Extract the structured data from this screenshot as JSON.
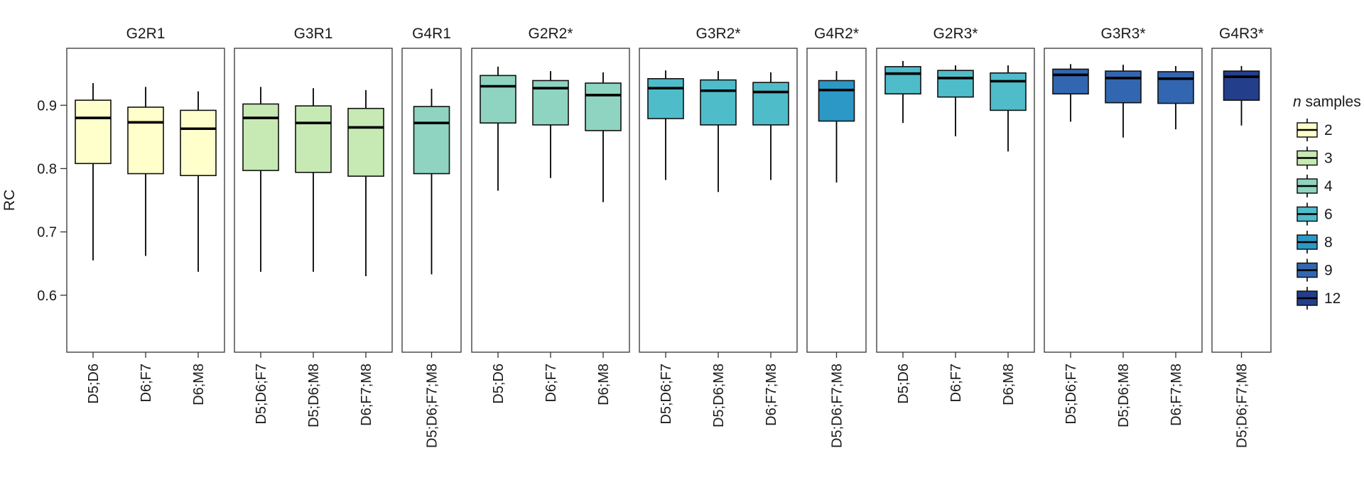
{
  "chart_data": {
    "type": "boxplot",
    "ylabel": "RC",
    "ylim": [
      0.51,
      0.99
    ],
    "yticks": [
      0.6,
      0.7,
      0.8,
      0.9
    ],
    "ytick_labels": [
      "0.6",
      "0.7",
      "0.8",
      "0.9"
    ],
    "legend": {
      "title_italic": "n",
      "title_rest": " samples",
      "position": "right",
      "entries": [
        {
          "label": "2",
          "color": "#ffffcc"
        },
        {
          "label": "3",
          "color": "#c7e9b4"
        },
        {
          "label": "4",
          "color": "#8fd4c0"
        },
        {
          "label": "6",
          "color": "#4fbcca"
        },
        {
          "label": "8",
          "color": "#2b98c6"
        },
        {
          "label": "9",
          "color": "#3366b0"
        },
        {
          "label": "12",
          "color": "#233e8b"
        }
      ]
    },
    "panels": [
      {
        "title": "G2R1",
        "boxes": [
          {
            "label": "D5;D6",
            "color": "#ffffcc",
            "min": 0.655,
            "q1": 0.808,
            "median": 0.88,
            "q3": 0.908,
            "max": 0.935
          },
          {
            "label": "D6;F7",
            "color": "#ffffcc",
            "min": 0.662,
            "q1": 0.792,
            "median": 0.873,
            "q3": 0.897,
            "max": 0.929
          },
          {
            "label": "D6;M8",
            "color": "#ffffcc",
            "min": 0.637,
            "q1": 0.789,
            "median": 0.863,
            "q3": 0.892,
            "max": 0.922
          }
        ]
      },
      {
        "title": "G3R1",
        "boxes": [
          {
            "label": "D5;D6;F7",
            "color": "#c7e9b4",
            "min": 0.637,
            "q1": 0.797,
            "median": 0.88,
            "q3": 0.902,
            "max": 0.929
          },
          {
            "label": "D5;D6;M8",
            "color": "#c7e9b4",
            "min": 0.637,
            "q1": 0.794,
            "median": 0.872,
            "q3": 0.899,
            "max": 0.927
          },
          {
            "label": "D6;F7;M8",
            "color": "#c7e9b4",
            "min": 0.63,
            "q1": 0.788,
            "median": 0.865,
            "q3": 0.895,
            "max": 0.924
          }
        ]
      },
      {
        "title": "G4R1",
        "boxes": [
          {
            "label": "D5;D6;F7;M8",
            "color": "#8fd4c0",
            "min": 0.633,
            "q1": 0.792,
            "median": 0.872,
            "q3": 0.898,
            "max": 0.926
          }
        ]
      },
      {
        "title": "G2R2*",
        "boxes": [
          {
            "label": "D5;D6",
            "color": "#8fd4c0",
            "min": 0.765,
            "q1": 0.872,
            "median": 0.93,
            "q3": 0.947,
            "max": 0.961
          },
          {
            "label": "D6;F7",
            "color": "#8fd4c0",
            "min": 0.785,
            "q1": 0.869,
            "median": 0.927,
            "q3": 0.939,
            "max": 0.954
          },
          {
            "label": "D6;M8",
            "color": "#8fd4c0",
            "min": 0.747,
            "q1": 0.86,
            "median": 0.916,
            "q3": 0.935,
            "max": 0.952
          }
        ]
      },
      {
        "title": "G3R2*",
        "boxes": [
          {
            "label": "D5;D6;F7",
            "color": "#4fbcca",
            "min": 0.782,
            "q1": 0.879,
            "median": 0.927,
            "q3": 0.942,
            "max": 0.955
          },
          {
            "label": "D5;D6;M8",
            "color": "#4fbcca",
            "min": 0.763,
            "q1": 0.869,
            "median": 0.923,
            "q3": 0.94,
            "max": 0.954
          },
          {
            "label": "D6;F7;M8",
            "color": "#4fbcca",
            "min": 0.782,
            "q1": 0.869,
            "median": 0.921,
            "q3": 0.936,
            "max": 0.952
          }
        ]
      },
      {
        "title": "G4R2*",
        "boxes": [
          {
            "label": "D5;D6;F7;M8",
            "color": "#2b98c6",
            "min": 0.778,
            "q1": 0.875,
            "median": 0.924,
            "q3": 0.939,
            "max": 0.954
          }
        ]
      },
      {
        "title": "G2R3*",
        "boxes": [
          {
            "label": "D5;D6",
            "color": "#4fbcca",
            "min": 0.872,
            "q1": 0.918,
            "median": 0.95,
            "q3": 0.961,
            "max": 0.97
          },
          {
            "label": "D6;F7",
            "color": "#4fbcca",
            "min": 0.851,
            "q1": 0.913,
            "median": 0.943,
            "q3": 0.955,
            "max": 0.963
          },
          {
            "label": "D6;M8",
            "color": "#4fbcca",
            "min": 0.827,
            "q1": 0.892,
            "median": 0.938,
            "q3": 0.951,
            "max": 0.963
          }
        ]
      },
      {
        "title": "G3R3*",
        "boxes": [
          {
            "label": "D5;D6;F7",
            "color": "#3366b0",
            "min": 0.874,
            "q1": 0.918,
            "median": 0.948,
            "q3": 0.957,
            "max": 0.965
          },
          {
            "label": "D5;D6;M8",
            "color": "#3366b0",
            "min": 0.849,
            "q1": 0.904,
            "median": 0.943,
            "q3": 0.954,
            "max": 0.964
          },
          {
            "label": "D6;F7;M8",
            "color": "#3366b0",
            "min": 0.862,
            "q1": 0.903,
            "median": 0.942,
            "q3": 0.953,
            "max": 0.962
          }
        ]
      },
      {
        "title": "G4R3*",
        "boxes": [
          {
            "label": "D5;D6;F7;M8",
            "color": "#233e8b",
            "min": 0.868,
            "q1": 0.908,
            "median": 0.945,
            "q3": 0.954,
            "max": 0.962
          }
        ]
      }
    ]
  }
}
